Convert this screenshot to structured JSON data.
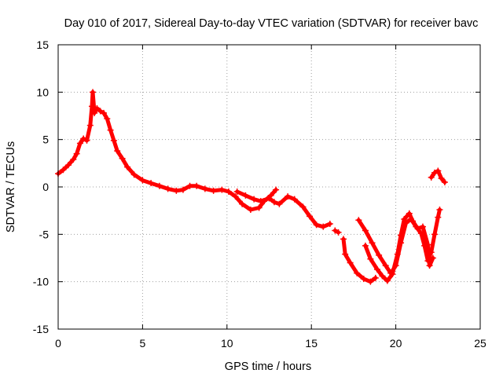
{
  "chart_data": {
    "type": "scatter",
    "title": "Day 010 of 2017, Sidereal Day-to-day VTEC variation (SDTVAR) for receiver bavc",
    "xlabel": "GPS time / hours",
    "ylabel": "SDTVAR / TECUs",
    "xlim": [
      0,
      25
    ],
    "ylim": [
      -15,
      15
    ],
    "xticks": [
      0,
      5,
      10,
      15,
      20,
      25
    ],
    "yticks": [
      -15,
      -10,
      -5,
      0,
      5,
      10,
      15
    ],
    "grid": true,
    "marker": "plus",
    "color": "#ff0000",
    "series": [
      {
        "name": "segment-1",
        "points": [
          [
            0,
            1.4
          ],
          [
            0.3,
            1.8
          ],
          [
            0.6,
            2.3
          ],
          [
            0.9,
            2.9
          ],
          [
            1.1,
            3.5
          ],
          [
            1.3,
            4.6
          ],
          [
            1.5,
            5.1
          ],
          [
            1.7,
            4.9
          ],
          [
            1.9,
            6.5
          ],
          [
            2.0,
            8.5
          ],
          [
            2.05,
            10.0
          ],
          [
            2.15,
            7.8
          ],
          [
            2.3,
            8.3
          ],
          [
            2.5,
            8.0
          ],
          [
            2.7,
            7.8
          ],
          [
            2.9,
            7.2
          ],
          [
            3.1,
            6.0
          ],
          [
            3.3,
            4.9
          ],
          [
            3.5,
            3.8
          ],
          [
            3.8,
            3.0
          ],
          [
            4.1,
            2.1
          ],
          [
            4.5,
            1.3
          ],
          [
            5.0,
            0.7
          ],
          [
            5.5,
            0.4
          ],
          [
            6.0,
            0.1
          ],
          [
            6.5,
            -0.2
          ],
          [
            7.0,
            -0.4
          ],
          [
            7.4,
            -0.3
          ],
          [
            7.8,
            0.1
          ],
          [
            8.2,
            0.1
          ],
          [
            8.7,
            -0.2
          ],
          [
            9.2,
            -0.4
          ],
          [
            9.7,
            -0.3
          ],
          [
            10.1,
            -0.5
          ],
          [
            10.5,
            -1.0
          ],
          [
            10.9,
            -1.8
          ],
          [
            11.4,
            -2.4
          ],
          [
            11.9,
            -2.2
          ],
          [
            12.2,
            -1.5
          ],
          [
            12.6,
            -0.9
          ],
          [
            12.9,
            -0.3
          ]
        ]
      },
      {
        "name": "segment-2",
        "points": [
          [
            10.6,
            -0.5
          ],
          [
            11.1,
            -0.9
          ],
          [
            11.6,
            -1.3
          ],
          [
            12.0,
            -1.5
          ],
          [
            12.5,
            -1.2
          ],
          [
            12.8,
            -1.6
          ],
          [
            13.1,
            -1.8
          ],
          [
            13.6,
            -1.0
          ],
          [
            14.0,
            -1.3
          ],
          [
            14.5,
            -2.1
          ],
          [
            14.9,
            -3.1
          ],
          [
            15.3,
            -4.0
          ],
          [
            15.7,
            -4.2
          ],
          [
            16.1,
            -3.9
          ]
        ]
      },
      {
        "name": "segment-3",
        "points": [
          [
            16.4,
            -4.6
          ],
          [
            16.6,
            -4.8
          ]
        ]
      },
      {
        "name": "segment-4",
        "points": [
          [
            16.9,
            -5.5
          ],
          [
            17.0,
            -7.1
          ],
          [
            17.3,
            -8.0
          ],
          [
            17.7,
            -9.1
          ],
          [
            18.1,
            -9.7
          ],
          [
            18.5,
            -10.0
          ],
          [
            18.8,
            -9.6
          ]
        ]
      },
      {
        "name": "segment-5",
        "points": [
          [
            17.8,
            -3.5
          ],
          [
            18.2,
            -4.6
          ],
          [
            18.6,
            -5.9
          ],
          [
            19.0,
            -7.2
          ],
          [
            19.4,
            -8.3
          ],
          [
            19.7,
            -9.1
          ],
          [
            20.0,
            -8.3
          ],
          [
            20.3,
            -5.9
          ],
          [
            20.6,
            -3.8
          ],
          [
            20.9,
            -3.4
          ],
          [
            21.2,
            -4.2
          ],
          [
            21.5,
            -4.9
          ],
          [
            21.7,
            -6.2
          ],
          [
            21.9,
            -7.8
          ],
          [
            22.1,
            -6.9
          ],
          [
            22.3,
            -5.0
          ],
          [
            22.5,
            -3.2
          ],
          [
            22.6,
            -2.4
          ]
        ]
      },
      {
        "name": "segment-6",
        "points": [
          [
            18.2,
            -6.2
          ],
          [
            18.5,
            -7.6
          ],
          [
            18.9,
            -8.7
          ],
          [
            19.2,
            -9.4
          ],
          [
            19.5,
            -9.9
          ],
          [
            19.8,
            -9.2
          ],
          [
            20.1,
            -7.1
          ],
          [
            20.3,
            -5.1
          ],
          [
            20.5,
            -3.4
          ],
          [
            20.8,
            -2.8
          ],
          [
            21.0,
            -3.6
          ],
          [
            21.3,
            -4.4
          ],
          [
            21.6,
            -4.2
          ],
          [
            21.9,
            -6.1
          ],
          [
            22.0,
            -8.3
          ],
          [
            22.2,
            -7.5
          ]
        ]
      },
      {
        "name": "segment-7",
        "points": [
          [
            22.1,
            1.0
          ],
          [
            22.3,
            1.5
          ],
          [
            22.5,
            1.7
          ],
          [
            22.7,
            0.9
          ],
          [
            22.9,
            0.5
          ]
        ]
      }
    ]
  }
}
